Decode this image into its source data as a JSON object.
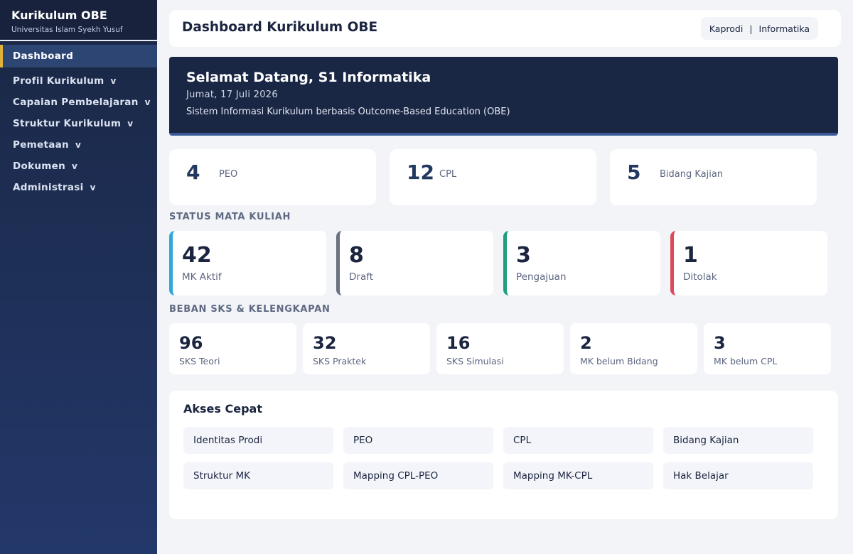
{
  "sidebar": {
    "brand_title": "Kurikulum OBE",
    "brand_subtitle": "Universitas Islam Syekh Yusuf",
    "items": [
      {
        "label": "Dashboard",
        "chevron": ""
      },
      {
        "label": "Profil Kurikulum",
        "chevron": "v"
      },
      {
        "label": "Capaian Pembelajaran",
        "chevron": "v"
      },
      {
        "label": "Struktur Kurikulum",
        "chevron": "v"
      },
      {
        "label": "Pemetaan",
        "chevron": "v"
      },
      {
        "label": "Dokumen",
        "chevron": "v"
      },
      {
        "label": "Administrasi",
        "chevron": "v"
      }
    ],
    "active_accent": "#e0b13a"
  },
  "header": {
    "title": "Dashboard Kurikulum OBE",
    "role": "Kaprodi",
    "separator": "|",
    "department": "Informatika"
  },
  "hero": {
    "title": "Selamat Datang, S1 Informatika",
    "date": "Jumat, 17 Juli 2026",
    "description": "Sistem Informasi Kurikulum berbasis Outcome-Based Education (OBE)"
  },
  "stats": [
    {
      "value": "4",
      "label": "PEO"
    },
    {
      "value": "12",
      "label": "CPL"
    },
    {
      "value": "5",
      "label": "Bidang Kajian"
    }
  ],
  "status_section": {
    "heading": "STATUS MATA KULIAH",
    "cards": [
      {
        "value": "42",
        "label": "MK Aktif",
        "color": "#2fa7d8"
      },
      {
        "value": "8",
        "label": "Draft",
        "color": "#6b7280"
      },
      {
        "value": "3",
        "label": "Pengajuan",
        "color": "#1f9e80"
      },
      {
        "value": "1",
        "label": "Ditolak",
        "color": "#dc4b5c"
      }
    ]
  },
  "sks_section": {
    "heading": "BEBAN SKS & KELENGKAPAN",
    "cards": [
      {
        "value": "96",
        "label": "SKS Teori"
      },
      {
        "value": "32",
        "label": "SKS Praktek"
      },
      {
        "value": "16",
        "label": "SKS Simulasi"
      },
      {
        "value": "2",
        "label": "MK belum Bidang"
      },
      {
        "value": "3",
        "label": "MK belum CPL"
      }
    ]
  },
  "quick_access": {
    "title": "Akses Cepat",
    "buttons": [
      "Identitas Prodi",
      "PEO",
      "CPL",
      "Bidang Kajian",
      "Struktur MK",
      "Mapping CPL-PEO",
      "Mapping MK-CPL",
      "Hak Belajar"
    ]
  }
}
